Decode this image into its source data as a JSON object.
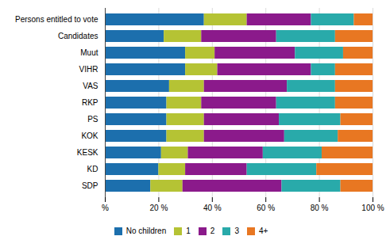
{
  "chart_data": {
    "type": "bar",
    "orientation": "horizontal",
    "stacked": true,
    "categories": [
      "Persons entitled to vote",
      "Candidates",
      "Muut",
      "VIHR",
      "VAS",
      "RKP",
      "PS",
      "KOK",
      "KESK",
      "KD",
      "SDP"
    ],
    "series": [
      {
        "name": "No children",
        "color": "#1c6fad",
        "values": [
          37,
          22,
          30,
          30,
          24,
          23,
          23,
          23,
          21,
          20,
          17
        ]
      },
      {
        "name": "1",
        "color": "#b5c334",
        "values": [
          16,
          14,
          11,
          12,
          13,
          13,
          14,
          14,
          10,
          10,
          12
        ]
      },
      {
        "name": "2",
        "color": "#8b1a8b",
        "values": [
          24,
          28,
          30,
          35,
          31,
          28,
          28,
          30,
          28,
          23,
          37
        ]
      },
      {
        "name": "3",
        "color": "#29aaaa",
        "values": [
          16,
          22,
          18,
          9,
          18,
          22,
          23,
          20,
          22,
          26,
          22
        ]
      },
      {
        "name": "4+",
        "color": "#e87722",
        "values": [
          7,
          14,
          11,
          14,
          14,
          14,
          12,
          13,
          19,
          21,
          12
        ]
      }
    ],
    "xlim": [
      0,
      100
    ],
    "xticks": [
      {
        "value": 0,
        "label": "%"
      },
      {
        "value": 20,
        "label": "20 %"
      },
      {
        "value": 40,
        "label": "40 %"
      },
      {
        "value": 60,
        "label": "60 %"
      },
      {
        "value": 80,
        "label": "80 %"
      },
      {
        "value": 100,
        "label": "100 %"
      }
    ],
    "grid": true,
    "legend": "bottom"
  }
}
